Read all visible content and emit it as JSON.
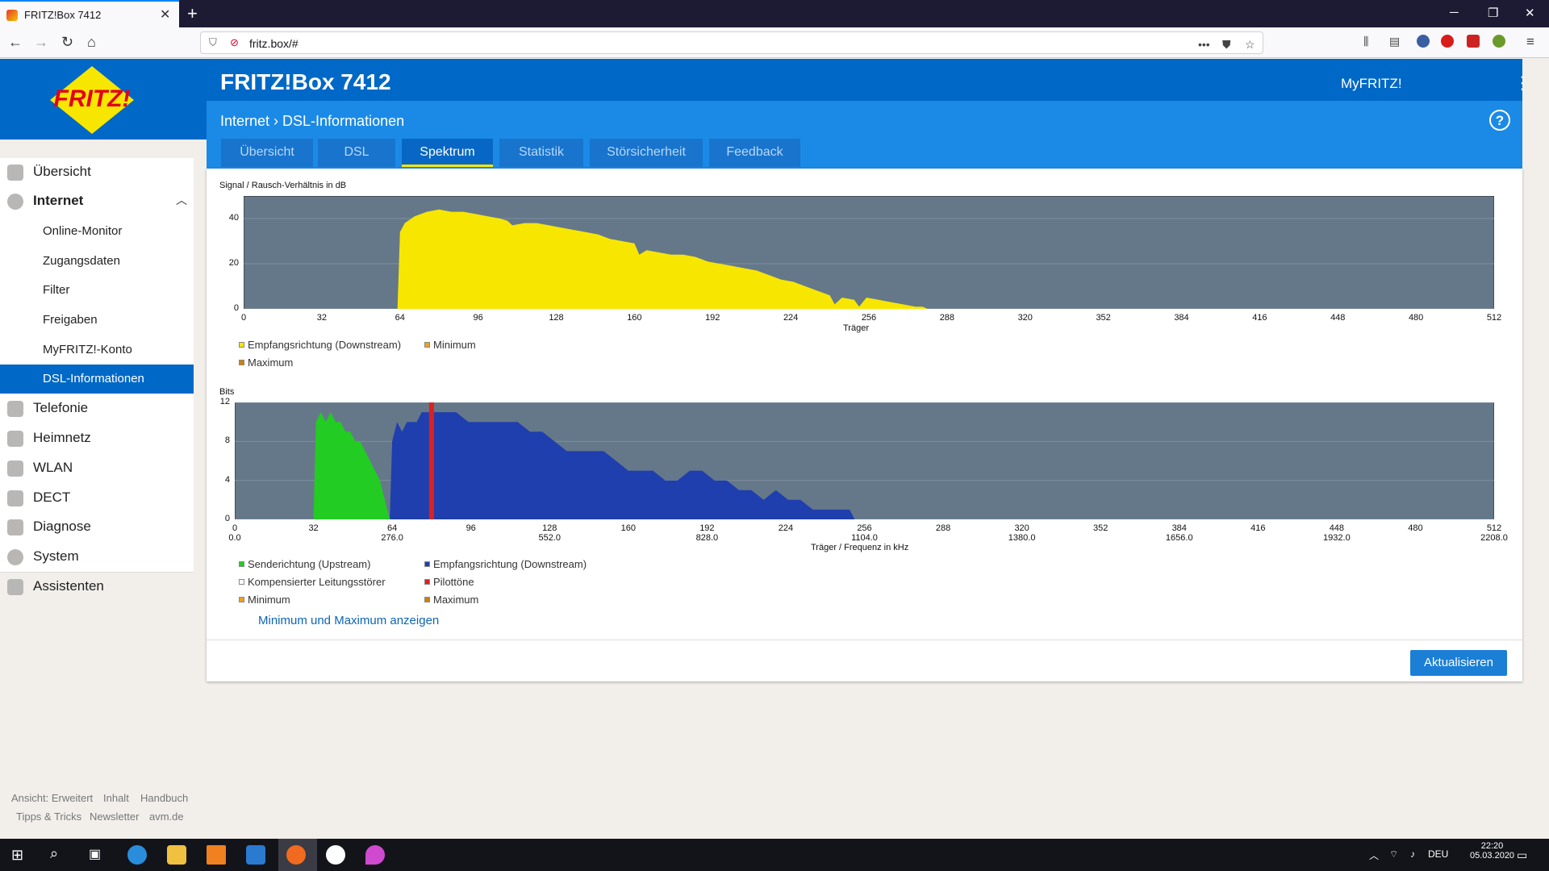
{
  "browser": {
    "tab_title": "FRITZ!Box 7412",
    "url": "fritz.box/#",
    "close": "✕",
    "newtab": "+",
    "min": "─",
    "max": "❐",
    "closewin": "✕"
  },
  "header": {
    "title": "FRITZ!Box 7412",
    "myfritz": "MyFRITZ!",
    "breadcrumb": "Internet › DSL-Informationen",
    "help": "?",
    "logo_text": "FRITZ!"
  },
  "tabs": [
    {
      "label": "Übersicht"
    },
    {
      "label": "DSL"
    },
    {
      "label": "Spektrum"
    },
    {
      "label": "Statistik"
    },
    {
      "label": "Störsicherheit"
    },
    {
      "label": "Feedback"
    }
  ],
  "sidebar": {
    "items": [
      {
        "label": "Übersicht"
      },
      {
        "label": "Internet"
      },
      {
        "label": "Telefonie"
      },
      {
        "label": "Heimnetz"
      },
      {
        "label": "WLAN"
      },
      {
        "label": "DECT"
      },
      {
        "label": "Diagnose"
      },
      {
        "label": "System"
      },
      {
        "label": "Assistenten"
      }
    ],
    "sub": [
      {
        "label": "Online-Monitor"
      },
      {
        "label": "Zugangsdaten"
      },
      {
        "label": "Filter"
      },
      {
        "label": "Freigaben"
      },
      {
        "label": "MyFRITZ!-Konto"
      },
      {
        "label": "DSL-Informationen"
      }
    ]
  },
  "footer": {
    "links1": [
      "Ansicht: Erweitert",
      "Inhalt",
      "Handbuch"
    ],
    "links2": [
      "Tipps & Tricks",
      "Newsletter",
      "avm.de"
    ]
  },
  "content": {
    "minmax_link": "Minimum und Maximum anzeigen",
    "refresh": "Aktualisieren"
  },
  "chart_data": [
    {
      "type": "area",
      "title": "Signal / Rausch-Verhältnis in dB",
      "xlabel": "Träger",
      "xlim": [
        0,
        512
      ],
      "ylim": [
        0,
        50
      ],
      "xticks": [
        "0",
        "32",
        "64",
        "96",
        "128",
        "160",
        "192",
        "224",
        "256",
        "288",
        "320",
        "352",
        "384",
        "416",
        "448",
        "480",
        "512"
      ],
      "yticks": [
        "0",
        "20",
        "40"
      ],
      "legend": [
        {
          "label": "Empfangsrichtung (Downstream)",
          "color": "#f7e600"
        },
        {
          "label": "Minimum",
          "color": "#f0a020"
        },
        {
          "label": "Maximum",
          "color": "#d08000"
        }
      ],
      "series": [
        {
          "name": "Empfangsrichtung (Downstream)",
          "color": "#f7e600",
          "x": [
            63,
            64,
            66,
            70,
            75,
            80,
            85,
            90,
            95,
            100,
            105,
            108,
            110,
            115,
            120,
            125,
            130,
            135,
            140,
            145,
            150,
            155,
            160,
            162,
            165,
            170,
            175,
            180,
            185,
            190,
            195,
            200,
            205,
            210,
            215,
            220,
            225,
            230,
            235,
            240,
            242,
            245,
            250,
            252,
            255,
            260,
            265,
            270,
            275,
            278,
            280
          ],
          "y": [
            0,
            34,
            38,
            41,
            43,
            44,
            43,
            43,
            42,
            41,
            40,
            39,
            37,
            38,
            38,
            37,
            36,
            35,
            34,
            33,
            31,
            30,
            29,
            24,
            26,
            25,
            24,
            24,
            23,
            21,
            20,
            19,
            18,
            17,
            15,
            13,
            12,
            10,
            8,
            6,
            2,
            5,
            4,
            1,
            5,
            4,
            3,
            2,
            1,
            1,
            0
          ]
        }
      ]
    },
    {
      "type": "area",
      "title": "Bits",
      "xlabel": "Träger / Frequenz in kHz",
      "xlim": [
        0,
        512
      ],
      "ylim": [
        0,
        12
      ],
      "xticks": [
        "0",
        "32",
        "64",
        "96",
        "128",
        "160",
        "192",
        "224",
        "256",
        "288",
        "320",
        "352",
        "384",
        "416",
        "448",
        "480",
        "512"
      ],
      "xticks2": [
        "0.0",
        "276.0",
        "552.0",
        "828.0",
        "1104.0",
        "1380.0",
        "1656.0",
        "1932.0",
        "2208.0"
      ],
      "yticks": [
        "0",
        "4",
        "8",
        "12"
      ],
      "legend": [
        {
          "label": "Senderichtung (Upstream)",
          "color": "#22cc22"
        },
        {
          "label": "Empfangsrichtung (Downstream)",
          "color": "#1f3fae"
        },
        {
          "label": "Kompensierter Leitungsstörer",
          "color": "#ffffff"
        },
        {
          "label": "Pilottöne",
          "color": "#dd2020"
        },
        {
          "label": "Minimum",
          "color": "#f0a020"
        },
        {
          "label": "Maximum",
          "color": "#d08000"
        }
      ],
      "series": [
        {
          "name": "Senderichtung (Upstream)",
          "color": "#22cc22",
          "x": [
            32,
            33,
            35,
            37,
            39,
            41,
            43,
            45,
            47,
            49,
            51,
            53,
            55,
            57,
            59,
            61,
            62,
            63
          ],
          "y": [
            0,
            10,
            11,
            10,
            11,
            10,
            10,
            9,
            9,
            8,
            8,
            7,
            6,
            5,
            4,
            2,
            1,
            0
          ]
        },
        {
          "name": "Empfangsrichtung (Downstream)",
          "color": "#1f3fae",
          "x": [
            63,
            64,
            66,
            68,
            70,
            72,
            74,
            76,
            78,
            80,
            85,
            90,
            95,
            100,
            105,
            110,
            115,
            120,
            125,
            130,
            135,
            140,
            145,
            150,
            155,
            160,
            165,
            170,
            175,
            180,
            185,
            190,
            195,
            200,
            205,
            210,
            215,
            220,
            225,
            230,
            235,
            240,
            245,
            248,
            250,
            252
          ],
          "y": [
            0,
            8,
            10,
            9,
            10,
            10,
            10,
            11,
            11,
            11,
            11,
            11,
            10,
            10,
            10,
            10,
            10,
            9,
            9,
            8,
            7,
            7,
            7,
            7,
            6,
            5,
            5,
            5,
            4,
            4,
            5,
            5,
            4,
            4,
            3,
            3,
            2,
            3,
            2,
            2,
            1,
            1,
            1,
            1,
            1,
            0
          ]
        },
        {
          "name": "Pilottöne",
          "color": "#dd2020",
          "x": [
            80
          ],
          "y": [
            12
          ]
        }
      ]
    }
  ]
}
